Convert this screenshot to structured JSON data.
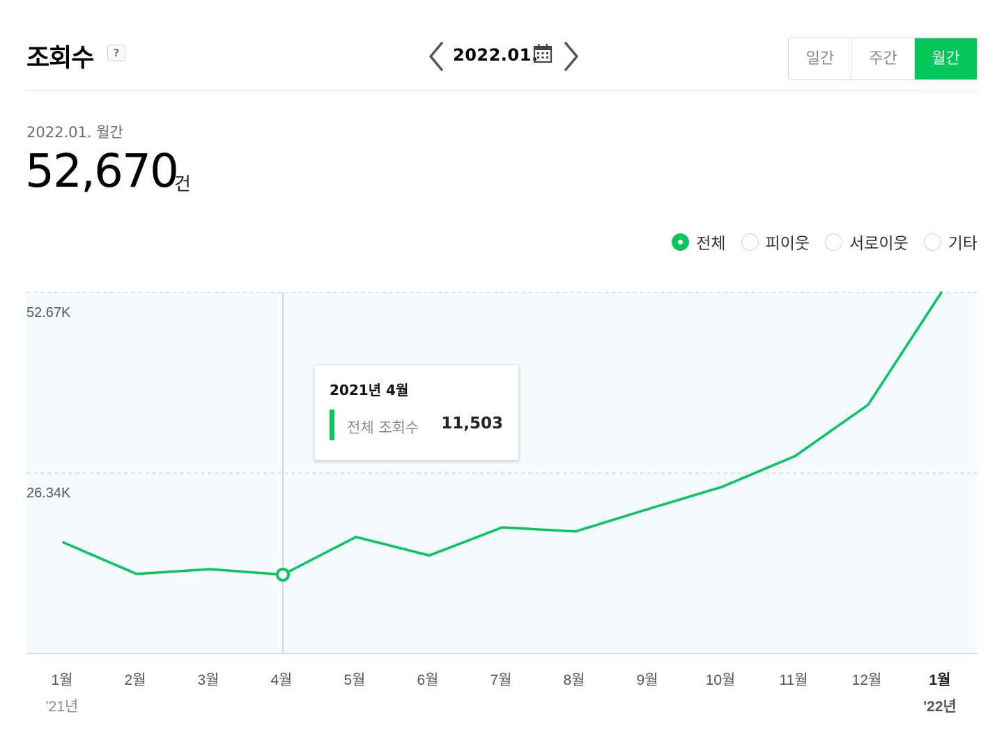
{
  "header": {
    "title": "조회수",
    "help_icon": "question-icon",
    "date": "2022.01.",
    "prev_icon": "chevron-left-icon",
    "next_icon": "chevron-right-icon",
    "calendar_icon": "calendar-icon"
  },
  "period_tabs": [
    {
      "label": "일간",
      "active": false
    },
    {
      "label": "주간",
      "active": false
    },
    {
      "label": "월간",
      "active": true
    }
  ],
  "summary": {
    "label": "2022.01. 월간",
    "value": "52,670",
    "unit": "건"
  },
  "filters": [
    {
      "label": "전체",
      "selected": true
    },
    {
      "label": "피이웃",
      "selected": false
    },
    {
      "label": "서로이웃",
      "selected": false
    },
    {
      "label": "기타",
      "selected": false
    }
  ],
  "tooltip": {
    "title": "2021년 4월",
    "label": "전체 조회수",
    "value": "11,503"
  },
  "colors": {
    "accent": "#03c75a",
    "plot_bg": "#f5fbfe",
    "grid": "#dde5ea"
  },
  "chart_data": {
    "type": "line",
    "categories": [
      "1월",
      "2월",
      "3월",
      "4월",
      "5월",
      "6월",
      "7월",
      "8월",
      "9월",
      "10월",
      "11월",
      "12월",
      "1월"
    ],
    "year_labels": [
      "'21년",
      "",
      "",
      "",
      "",
      "",
      "",
      "",
      "",
      "",
      "",
      "",
      "'22년"
    ],
    "series": [
      {
        "values": [
          16200,
          11600,
          12300,
          11503,
          17000,
          14300,
          18400,
          17800,
          21100,
          24300,
          28800,
          36300,
          52670
        ]
      }
    ],
    "y_ticks": [
      {
        "value": 52670,
        "label": "52.67K"
      },
      {
        "value": 26335,
        "label": "26.34K"
      }
    ],
    "ylim": [
      0,
      52670
    ],
    "highlight_index": 3,
    "current_index": 12,
    "grid": true,
    "legend": "none"
  }
}
